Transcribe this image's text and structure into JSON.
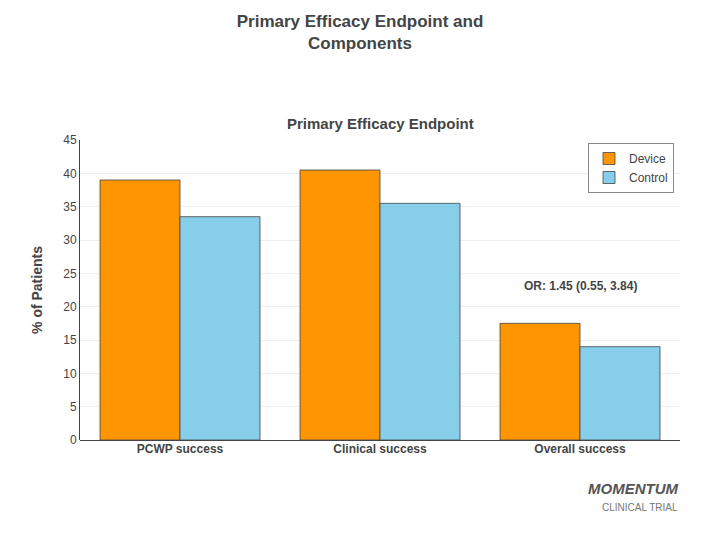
{
  "chart_data": {
    "type": "bar",
    "title": "Primary Efficacy Endpoint and\nComponents",
    "subtitle": "Primary Efficacy Endpoint",
    "ylabel": "% of Patients",
    "categories": [
      "PCWP success",
      "Clinical success",
      "Overall success"
    ],
    "series": [
      {
        "name": "Device",
        "color": "#FF9500",
        "values": [
          39,
          40.5,
          17.5
        ]
      },
      {
        "name": "Control",
        "color": "#87CEEB",
        "values": [
          33.5,
          35.5,
          14
        ]
      }
    ],
    "ylim": [
      0,
      45
    ],
    "yticks": [
      0,
      5,
      10,
      15,
      20,
      25,
      30,
      35,
      40,
      45
    ],
    "grid": true,
    "legend": "upper right",
    "annotations": [
      "OR: 1.45 (0.55, 3.84)",
      "MOMENTUM",
      "CLINICAL TRIAL"
    ]
  }
}
